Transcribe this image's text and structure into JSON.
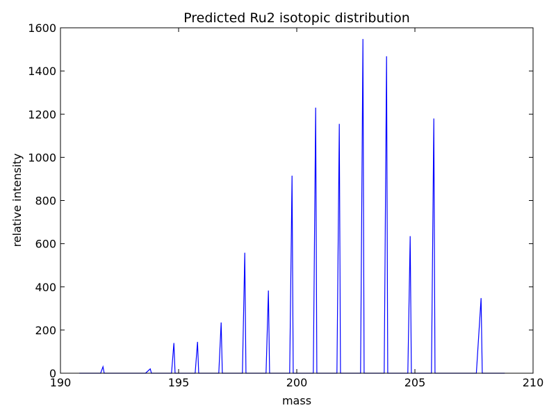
{
  "chart_data": {
    "type": "line",
    "title": "Predicted Ru2 isotopic distribution",
    "xlabel": "mass",
    "ylabel": "relative intensity",
    "xlim": [
      190,
      210
    ],
    "ylim": [
      0,
      1600
    ],
    "xticks": [
      190,
      195,
      200,
      205,
      210
    ],
    "yticks": [
      0,
      200,
      400,
      600,
      800,
      1000,
      1200,
      1400,
      1600
    ],
    "grid": false,
    "line_color": "#0000ff",
    "x_start": 190.8,
    "x_end": 208.8,
    "series": [
      {
        "peaks": [
          {
            "x": 191.8,
            "y": 30,
            "width": 0.1
          },
          {
            "x": 193.8,
            "y": 20,
            "width": 0.2
          },
          {
            "x": 194.8,
            "y": 140,
            "width": 0.1
          },
          {
            "x": 195.8,
            "y": 145,
            "width": 0.1
          },
          {
            "x": 196.8,
            "y": 235,
            "width": 0.1
          },
          {
            "x": 197.8,
            "y": 558,
            "width": 0.1
          },
          {
            "x": 198.8,
            "y": 383,
            "width": 0.1
          },
          {
            "x": 199.8,
            "y": 915,
            "width": 0.1
          },
          {
            "x": 200.8,
            "y": 1230,
            "width": 0.1
          },
          {
            "x": 201.8,
            "y": 1155,
            "width": 0.1
          },
          {
            "x": 202.8,
            "y": 1548,
            "width": 0.1
          },
          {
            "x": 203.8,
            "y": 1468,
            "width": 0.1
          },
          {
            "x": 204.8,
            "y": 635,
            "width": 0.1
          },
          {
            "x": 205.8,
            "y": 1180,
            "width": 0.1
          },
          {
            "x": 207.8,
            "y": 348,
            "width": 0.2
          }
        ]
      }
    ]
  }
}
